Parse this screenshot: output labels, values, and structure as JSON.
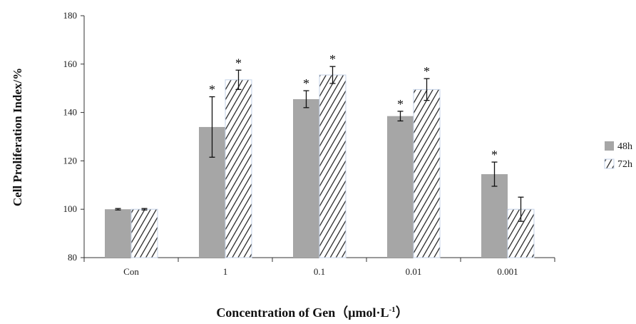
{
  "chart_data": {
    "type": "bar",
    "xlabel": "Concentration of Gen（μmol·L",
    "xlabel_sup": "-1",
    "xlabel_end": "）",
    "ylabel": "Cell Proliferation Index/%",
    "ylim": [
      80,
      180
    ],
    "yticks": [
      80,
      100,
      120,
      140,
      160,
      180
    ],
    "categories": [
      "Con",
      "1",
      "0.1",
      "0.01",
      "0.001"
    ],
    "series": [
      {
        "name": "48h",
        "pattern": "solid",
        "color": "#a6a6a6",
        "values": [
          100,
          134,
          145.5,
          138.5,
          114.5
        ],
        "errors": [
          0.3,
          12.5,
          3.5,
          2,
          5
        ],
        "significant": [
          false,
          true,
          true,
          true,
          true
        ]
      },
      {
        "name": "72h",
        "pattern": "hatch",
        "color": "#1a1a1a",
        "values": [
          100,
          153.5,
          155.5,
          149.5,
          100
        ],
        "errors": [
          0.3,
          4,
          3.5,
          4.5,
          5
        ],
        "significant": [
          false,
          true,
          true,
          true,
          false
        ]
      }
    ],
    "significance_marker": "*",
    "legend_position": "right",
    "grid": false
  }
}
